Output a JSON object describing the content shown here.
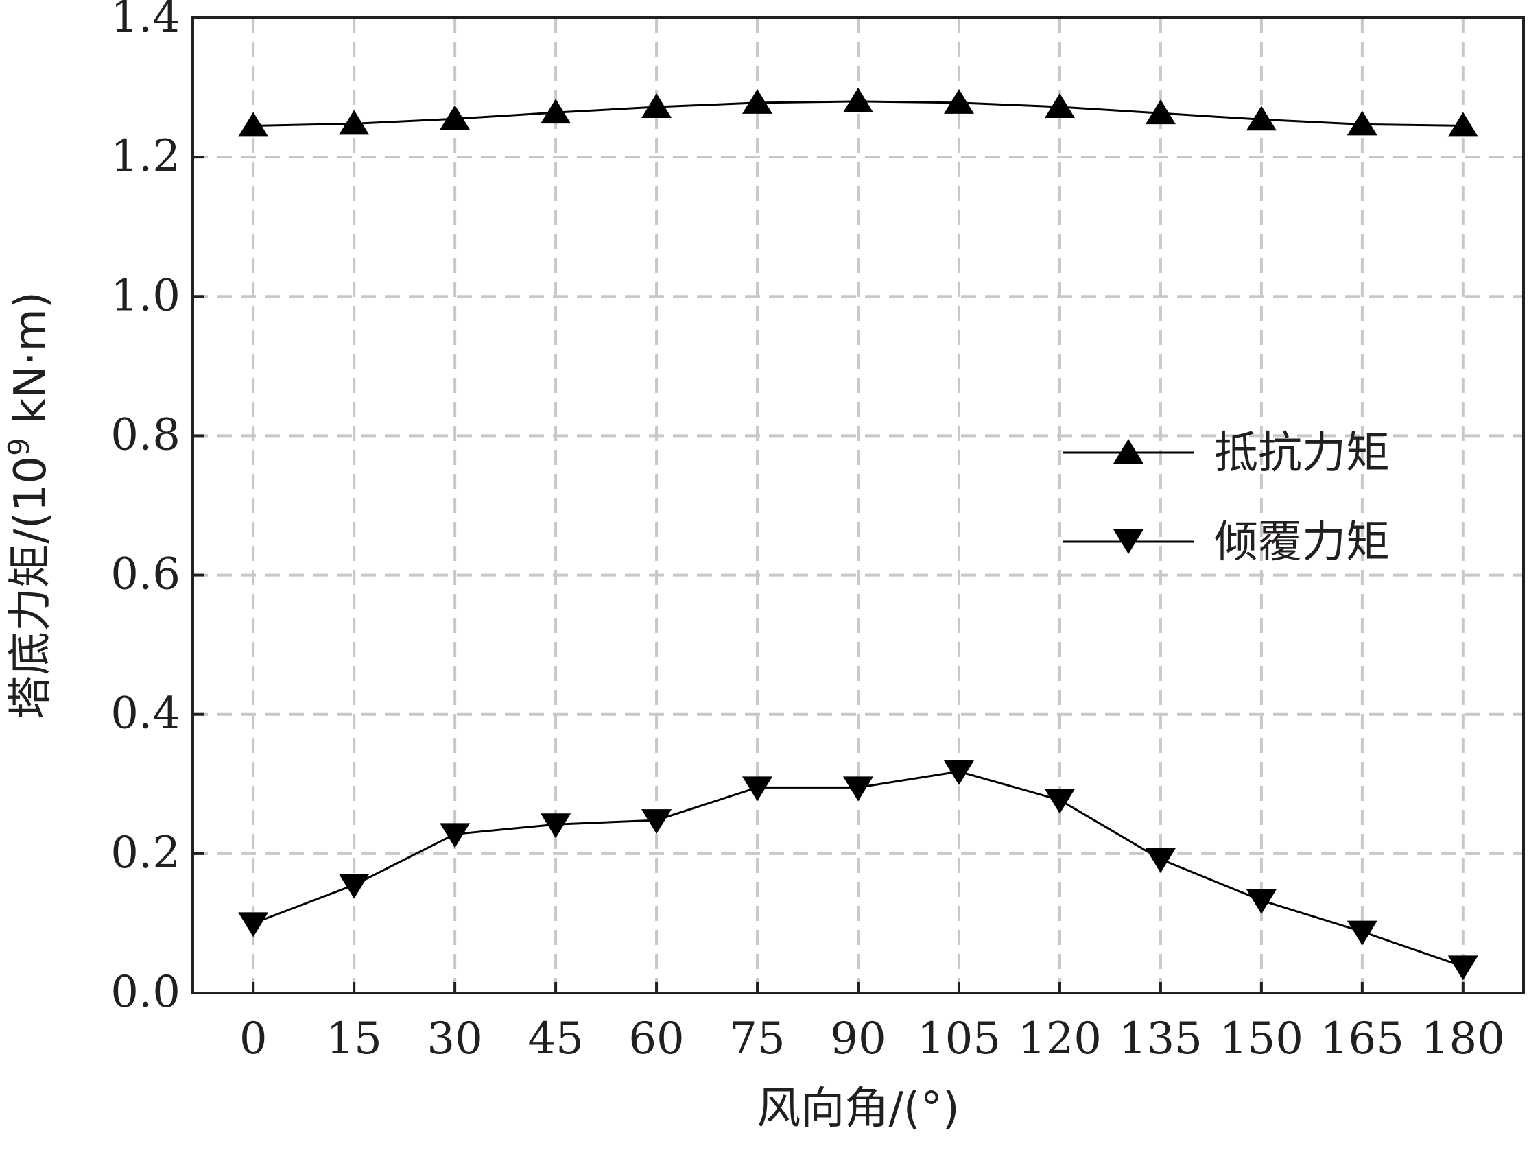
{
  "chart_data": {
    "type": "line",
    "xlabel": "风向角/(°)",
    "ylabel_main": "塔底力矩/(10",
    "ylabel_sup": "9",
    "ylabel_tail": " kN·m)",
    "x": [
      0,
      15,
      30,
      45,
      60,
      75,
      90,
      105,
      120,
      135,
      150,
      165,
      180
    ],
    "x_tick_labels": [
      "0",
      "15",
      "30",
      "45",
      "60",
      "75",
      "90",
      "105",
      "120",
      "135",
      "150",
      "165",
      "180"
    ],
    "y_tick_labels": [
      "0.0",
      "0.2",
      "0.4",
      "0.6",
      "0.8",
      "1.0",
      "1.2",
      "1.4"
    ],
    "y_ticks": [
      0.0,
      0.2,
      0.4,
      0.6,
      0.8,
      1.0,
      1.2,
      1.4
    ],
    "xlim": [
      -9,
      189
    ],
    "ylim": [
      0,
      1.4
    ],
    "grid": true,
    "grid_style": "dashed",
    "legend_position": "center-right",
    "series": [
      {
        "name": "抵抗力矩",
        "marker": "triangle-up",
        "color": "#000000",
        "values": [
          1.245,
          1.248,
          1.255,
          1.264,
          1.272,
          1.278,
          1.28,
          1.278,
          1.272,
          1.263,
          1.254,
          1.247,
          1.245
        ]
      },
      {
        "name": "倾覆力矩",
        "marker": "triangle-down",
        "color": "#000000",
        "values": [
          0.1,
          0.155,
          0.228,
          0.242,
          0.248,
          0.295,
          0.295,
          0.318,
          0.277,
          0.192,
          0.133,
          0.088,
          0.038
        ]
      }
    ]
  }
}
